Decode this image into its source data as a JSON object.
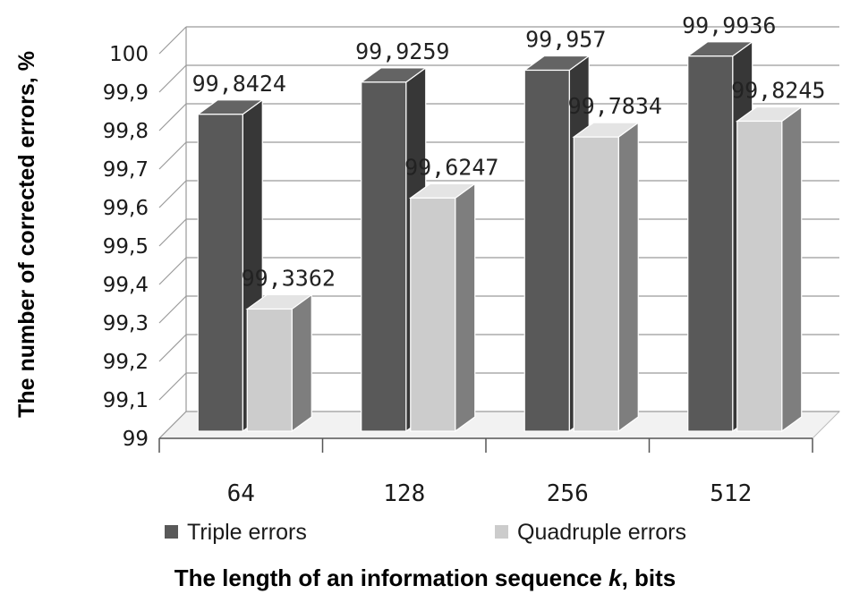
{
  "chart_data": {
    "type": "bar",
    "categories": [
      "64",
      "128",
      "256",
      "512"
    ],
    "series": [
      {
        "name": "Triple errors",
        "values": [
          99.8424,
          99.9259,
          99.957,
          99.9936
        ],
        "labels": [
          "99,8424",
          "99,9259",
          "99,957",
          "99,9936"
        ],
        "color": "#595959"
      },
      {
        "name": "Quadruple errors",
        "values": [
          99.3362,
          99.6247,
          99.7834,
          99.8245
        ],
        "labels": [
          "99,3362",
          "99,6247",
          "99,7834",
          "99,8245"
        ],
        "color": "#cccccc"
      }
    ],
    "yticks": [
      "99",
      "99,1",
      "99,2",
      "99,3",
      "99,4",
      "99,5",
      "99,6",
      "99,7",
      "99,8",
      "99,9",
      "100"
    ],
    "ylim": [
      99,
      100
    ],
    "xlabel": "The length of an information sequence k, bits",
    "ylabel": "The number of corrected errors, %",
    "grid": true,
    "legend": "bottom",
    "three_d": true
  }
}
